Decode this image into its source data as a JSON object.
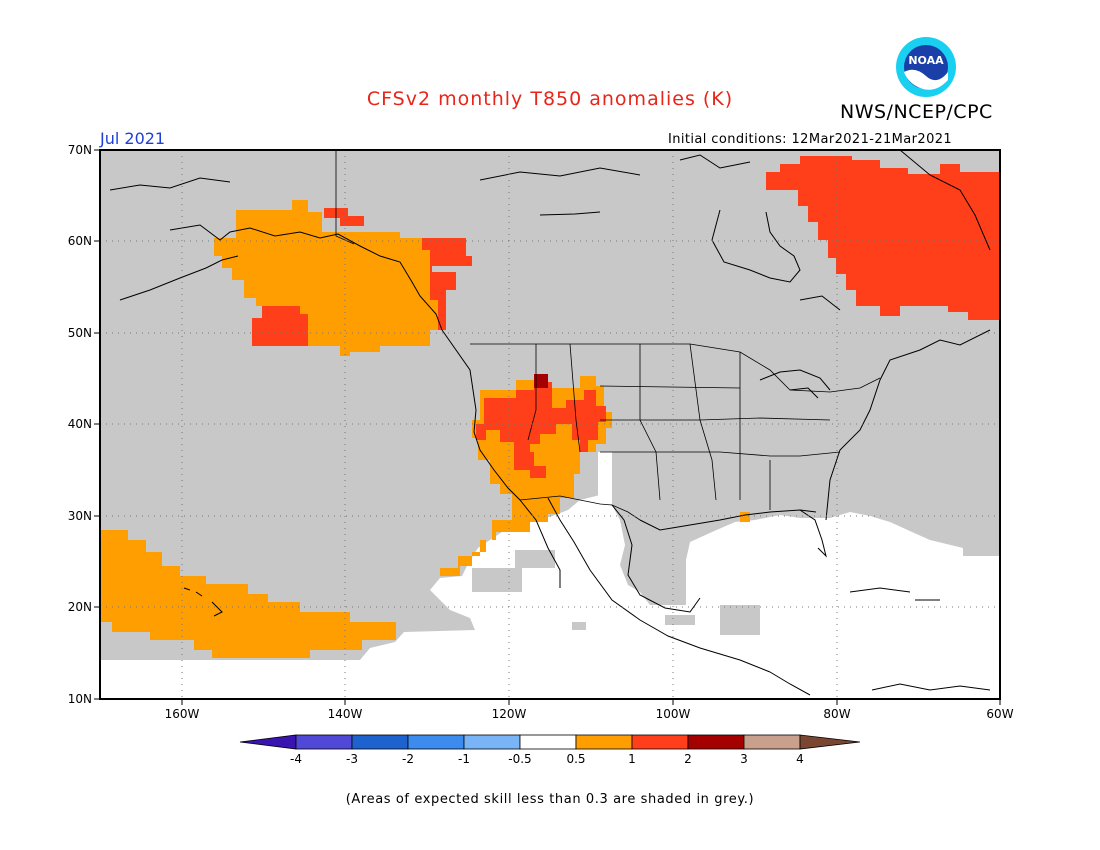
{
  "title": "CFSv2 monthly T850 anomalies (K)",
  "agency": "NWS/NCEP/CPC",
  "logo_text": "NOAA",
  "valid_month": "Jul 2021",
  "initial_conditions": "Initial conditions: 12Mar2021-21Mar2021",
  "footnote": "(Areas of expected skill less than 0.3 are shaded in grey.)",
  "colors": {
    "title": "#e8251a",
    "month": "#1f3fd6",
    "skill_grey": "#c8c8c8",
    "ocean_white": "#ffffff"
  },
  "map": {
    "lon_range": [
      -170,
      -60
    ],
    "lat_range": [
      10,
      70
    ],
    "lon_ticks": [
      "160W",
      "140W",
      "120W",
      "100W",
      "80W",
      "60W"
    ],
    "lat_ticks": [
      "70N",
      "60N",
      "50N",
      "40N",
      "30N",
      "20N",
      "10N"
    ],
    "gridlines": "dotted",
    "regions": [
      {
        "category": "1-2",
        "color": "#ff3f1a",
        "area": "Northeast Canada / Labrador"
      },
      {
        "category": "0.5-1",
        "color": "#ff9e00",
        "area": "Gulf of Alaska and western Canada"
      },
      {
        "category": "1-2",
        "color": "#ff3f1a",
        "area": "Southern Alaska coast and Pacific Northwest coast"
      },
      {
        "category": "1-2",
        "color": "#ff3f1a",
        "area": "Great Basin / Intermountain West"
      },
      {
        "category": "2-3",
        "color": "#a50000",
        "area": "Southeast Idaho / Utah"
      },
      {
        "category": "0.5-1",
        "color": "#ff9e00",
        "area": "Desert Southwest and Baja coast"
      },
      {
        "category": "0.5-1",
        "color": "#ff9e00",
        "area": "Subtropical Pacific near Hawaii"
      },
      {
        "category": "0.5-1",
        "color": "#ff9e00",
        "area": "Louisiana coast"
      },
      {
        "category": "-0.5-0.5",
        "color": "#ffffff",
        "area": "Tropical Pacific, Gulf of Mexico, Caribbean, Atlantic"
      }
    ]
  },
  "colorbar": {
    "labels": [
      "-4",
      "-3",
      "-2",
      "-1",
      "-0.5",
      "0.5",
      "1",
      "2",
      "3",
      "4"
    ],
    "colors": [
      "#3a14b0",
      "#5048d6",
      "#1e62d0",
      "#3c8cf0",
      "#78b4f6",
      "#ffffff",
      "#ff9e00",
      "#ff3f1a",
      "#a50000",
      "#c8a08c",
      "#7a4632"
    ]
  }
}
